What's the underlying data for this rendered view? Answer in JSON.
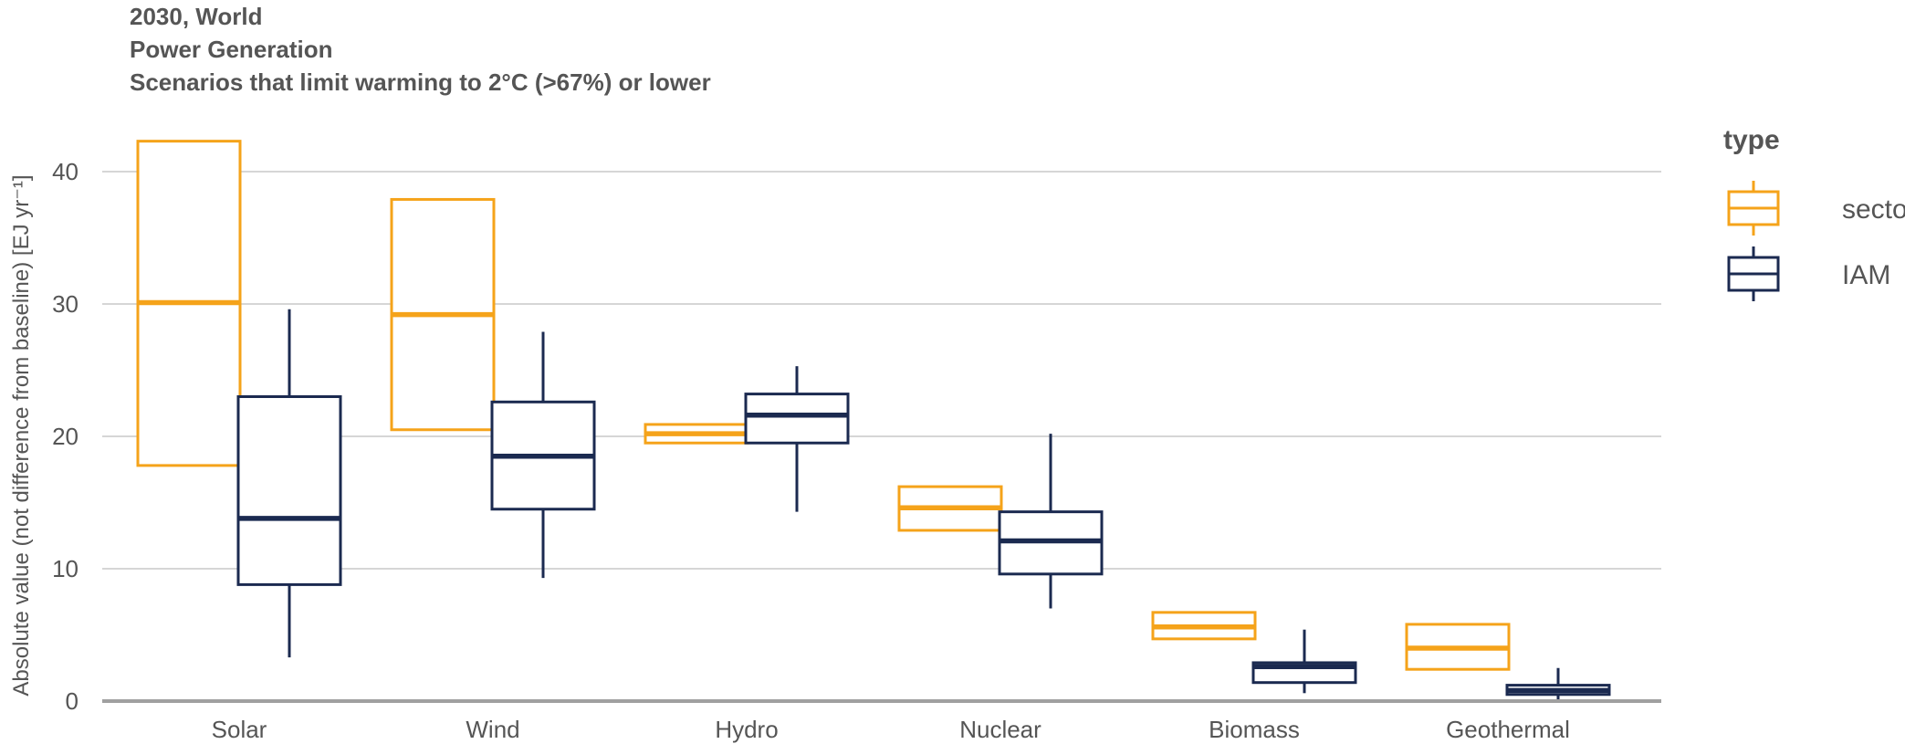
{
  "title_lines": [
    "2030, World",
    "Power Generation",
    "Scenarios that limit warming to 2°C (>67%) or lower"
  ],
  "chart_data": {
    "type": "box",
    "ylabel": "Absolute value (not difference from baseline) [EJ yr⁻¹]",
    "ylim": [
      0,
      42
    ],
    "yticks": [
      0,
      10,
      20,
      30,
      40
    ],
    "grid": true,
    "legend": {
      "title": "type",
      "placement": "right"
    },
    "categories": [
      "Solar",
      "Wind",
      "Hydro",
      "Nuclear",
      "Biomass",
      "Geothermal"
    ],
    "series": [
      {
        "name": "sectoral",
        "color": "#F5A31A",
        "boxes": [
          {
            "q1": 17.8,
            "median": 30.1,
            "q3": 42.3
          },
          {
            "q1": 20.5,
            "median": 29.2,
            "q3": 37.9
          },
          {
            "q1": 19.5,
            "median": 20.2,
            "q3": 20.9
          },
          {
            "q1": 12.9,
            "median": 14.6,
            "q3": 16.2
          },
          {
            "q1": 4.7,
            "median": 5.6,
            "q3": 6.7
          },
          {
            "q1": 2.4,
            "median": 4.0,
            "q3": 5.8
          }
        ]
      },
      {
        "name": "IAM",
        "color": "#1B2A50",
        "boxes": [
          {
            "min": 3.3,
            "q1": 8.8,
            "median": 13.8,
            "q3": 23.0,
            "max": 29.6
          },
          {
            "min": 9.3,
            "q1": 14.5,
            "median": 18.5,
            "q3": 22.6,
            "max": 27.9
          },
          {
            "min": 14.3,
            "q1": 19.5,
            "median": 21.6,
            "q3": 23.2,
            "max": 25.3
          },
          {
            "min": 7.0,
            "q1": 9.6,
            "median": 12.1,
            "q3": 14.3,
            "max": 20.2
          },
          {
            "min": 0.6,
            "q1": 1.4,
            "median": 2.6,
            "q3": 2.9,
            "max": 5.4
          },
          {
            "min": 0.1,
            "q1": 0.5,
            "median": 0.8,
            "q3": 1.2,
            "max": 2.5
          }
        ]
      }
    ]
  }
}
